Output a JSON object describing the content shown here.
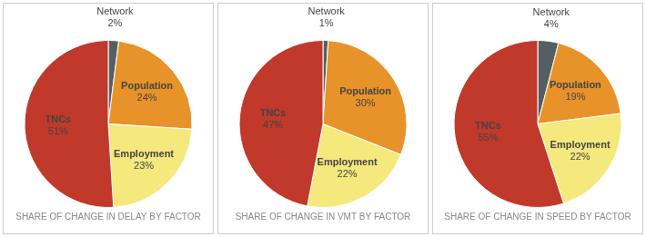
{
  "chart_data": [
    {
      "type": "pie",
      "title": "SHARE OF CHANGE IN DELAY BY FACTOR",
      "categories": [
        "Network",
        "Population",
        "Employment",
        "TNCs"
      ],
      "values": [
        2,
        24,
        23,
        51
      ],
      "value_labels": [
        "2%",
        "24%",
        "23%",
        "51%"
      ],
      "colors": [
        "#555f61",
        "#e8922a",
        "#f5e87c",
        "#c0392b"
      ],
      "data_labels": true
    },
    {
      "type": "pie",
      "title": "SHARE OF CHANGE IN VMT BY FACTOR",
      "categories": [
        "Network",
        "Population",
        "Employment",
        "TNCs"
      ],
      "values": [
        1,
        30,
        22,
        47
      ],
      "value_labels": [
        "1%",
        "30%",
        "22%",
        "47%"
      ],
      "colors": [
        "#555f61",
        "#e8922a",
        "#f5e87c",
        "#c0392b"
      ],
      "data_labels": true
    },
    {
      "type": "pie",
      "title": "SHARE OF CHANGE IN SPEED BY FACTOR",
      "categories": [
        "Network",
        "Population",
        "Employment",
        "TNCs"
      ],
      "values": [
        4,
        19,
        22,
        55
      ],
      "value_labels": [
        "4%",
        "19%",
        "22%",
        "55%"
      ],
      "colors": [
        "#555f61",
        "#e8922a",
        "#f5e87c",
        "#c0392b"
      ],
      "data_labels": true
    }
  ]
}
